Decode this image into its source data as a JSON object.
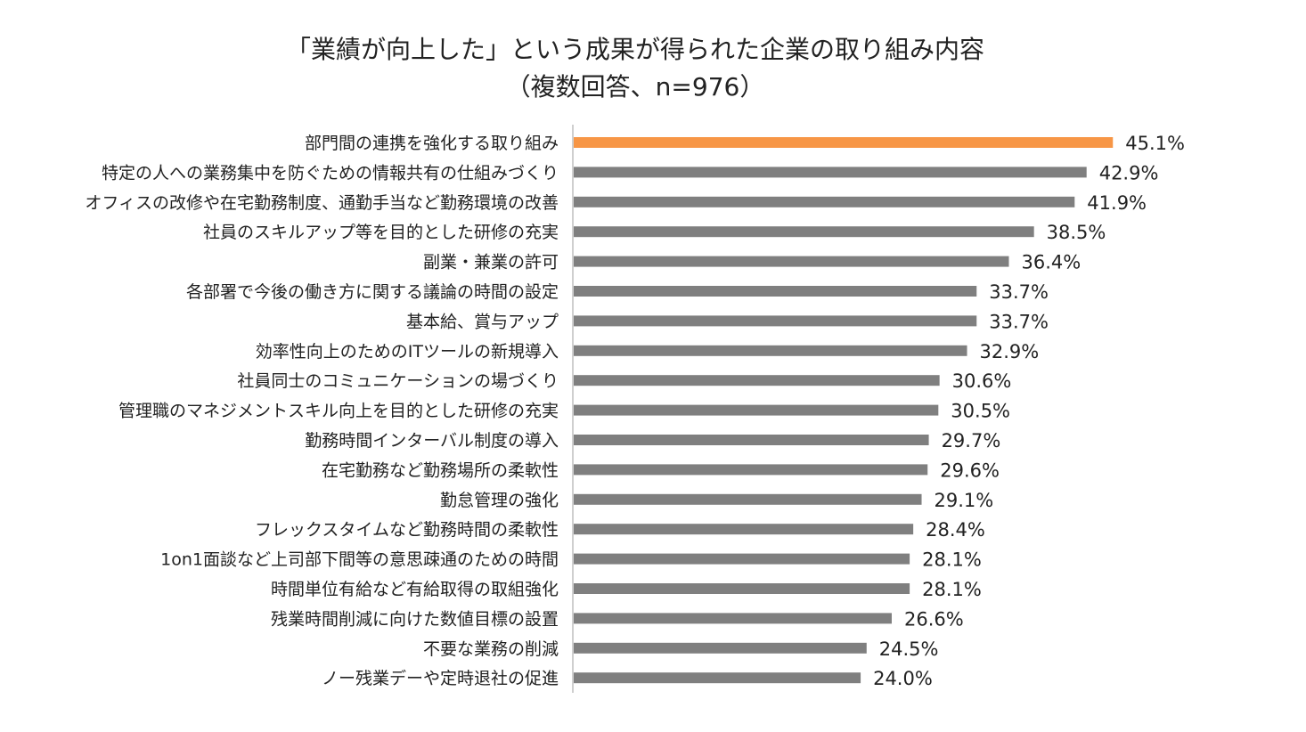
{
  "chart_data": {
    "type": "bar",
    "orientation": "horizontal",
    "title_line1": "「業績が向上した」という成果が得られた企業の取り組み内容",
    "title_line2": "（複数回答、n=976）",
    "categories": [
      "部門間の連携を強化する取り組み",
      "特定の人への業務集中を防ぐための情報共有の仕組みづくり",
      "オフィスの改修や在宅勤務制度、通勤手当など勤務環境の改善",
      "社員のスキルアップ等を目的とした研修の充実",
      "副業・兼業の許可",
      "各部署で今後の働き方に関する議論の時間の設定",
      "基本給、賞与アップ",
      "効率性向上のためのITツールの新規導入",
      "社員同士のコミュニケーションの場づくり",
      "管理職のマネジメントスキル向上を目的とした研修の充実",
      "勤務時間インターバル制度の導入",
      "在宅勤務など勤務場所の柔軟性",
      "勤怠管理の強化",
      "フレックスタイムなど勤務時間の柔軟性",
      "1on1面談など上司部下間等の意思疎通のための時間",
      "時間単位有給など有給取得の取組強化",
      "残業時間削減に向けた数値目標の設置",
      "不要な業務の削減",
      "ノー残業デーや定時退社の促進"
    ],
    "values": [
      45.1,
      42.9,
      41.9,
      38.5,
      36.4,
      33.7,
      33.7,
      32.9,
      30.6,
      30.5,
      29.7,
      29.6,
      29.1,
      28.4,
      28.1,
      28.1,
      26.6,
      24.5,
      24.0
    ],
    "labels": [
      "45.1%",
      "42.9%",
      "41.9%",
      "38.5%",
      "36.4%",
      "33.7%",
      "33.7%",
      "32.9%",
      "30.6%",
      "30.5%",
      "29.7%",
      "29.6%",
      "29.1%",
      "28.4%",
      "28.1%",
      "28.1%",
      "26.6%",
      "24.5%",
      "24.0%"
    ],
    "unit": "%",
    "highlight_color": "#F79646",
    "bar_color": "#7F7F7F",
    "axis_color": "#BFBFBF"
  }
}
